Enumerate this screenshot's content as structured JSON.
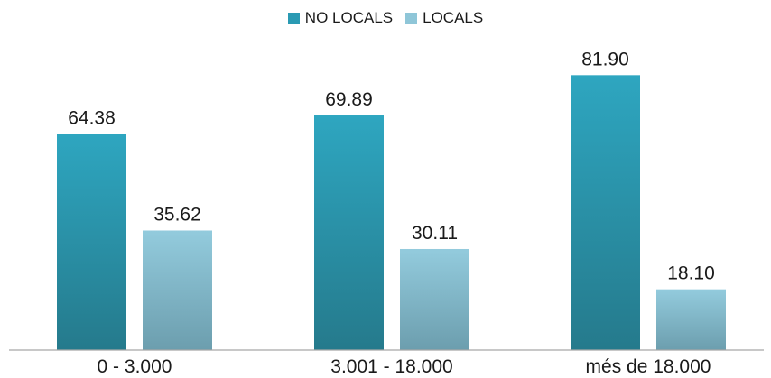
{
  "chart_data": {
    "type": "bar",
    "categories": [
      "0 - 3.000",
      "3.001 - 18.000",
      "més de 18.000"
    ],
    "series": [
      {
        "name": "NO LOCALS",
        "values": [
          64.38,
          69.89,
          81.9
        ],
        "labels": [
          "64.38",
          "69.89",
          "81.90"
        ],
        "color": "#2a9ab3"
      },
      {
        "name": "LOCALS",
        "values": [
          35.62,
          30.11,
          18.1
        ],
        "labels": [
          "35.62",
          "30.11",
          "18.10"
        ],
        "color": "#8fc6d8"
      }
    ],
    "ylim": [
      0,
      100
    ],
    "grid": false,
    "legend_position": "top-center"
  }
}
